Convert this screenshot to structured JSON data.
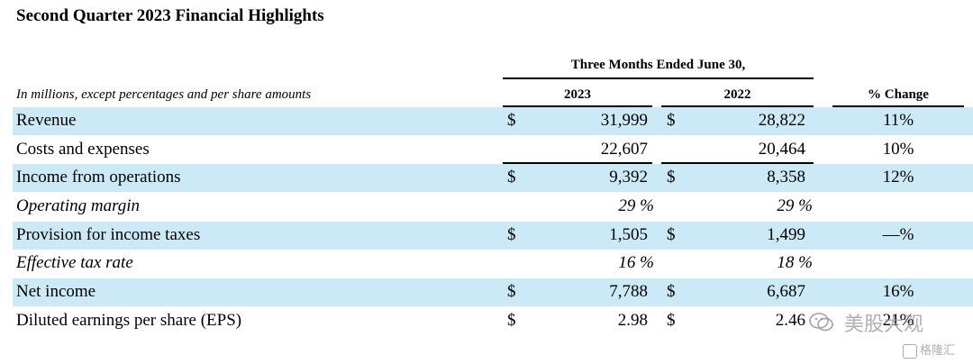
{
  "title": "Second Quarter 2023 Financial Highlights",
  "period_header": "Three Months Ended June 30,",
  "units_note": "In millions, except percentages and per share amounts",
  "columns": {
    "y2023": "2023",
    "y2022": "2022",
    "pct_change": "% Change"
  },
  "rows": [
    {
      "label": "Revenue",
      "currency1": "$",
      "v2023": "31,999",
      "currency2": "$",
      "v2022": "28,822",
      "pct": "11%"
    },
    {
      "label": "Costs and expenses",
      "currency1": "",
      "v2023": "22,607",
      "currency2": "",
      "v2022": "20,464",
      "pct": "10%"
    },
    {
      "label": "Income from operations",
      "currency1": "$",
      "v2023": "9,392",
      "currency2": "$",
      "v2022": "8,358",
      "pct": "12%"
    },
    {
      "label": "Operating margin",
      "currency1": "",
      "v2023": "29 %",
      "currency2": "",
      "v2022": "29 %",
      "pct": ""
    },
    {
      "label": "Provision for income taxes",
      "currency1": "$",
      "v2023": "1,505",
      "currency2": "$",
      "v2022": "1,499",
      "pct": "—%"
    },
    {
      "label": "Effective tax rate",
      "currency1": "",
      "v2023": "16 %",
      "currency2": "",
      "v2022": "18 %",
      "pct": ""
    },
    {
      "label": "Net income",
      "currency1": "$",
      "v2023": "7,788",
      "currency2": "$",
      "v2022": "6,687",
      "pct": "16%"
    },
    {
      "label": "Diluted earnings per share (EPS)",
      "currency1": "$",
      "v2023": "2.98",
      "currency2": "$",
      "v2022": "2.46",
      "pct": "21%"
    }
  ],
  "watermark": {
    "text": "美股大观",
    "sub": "格隆汇",
    "icon": "wechat-icon"
  }
}
